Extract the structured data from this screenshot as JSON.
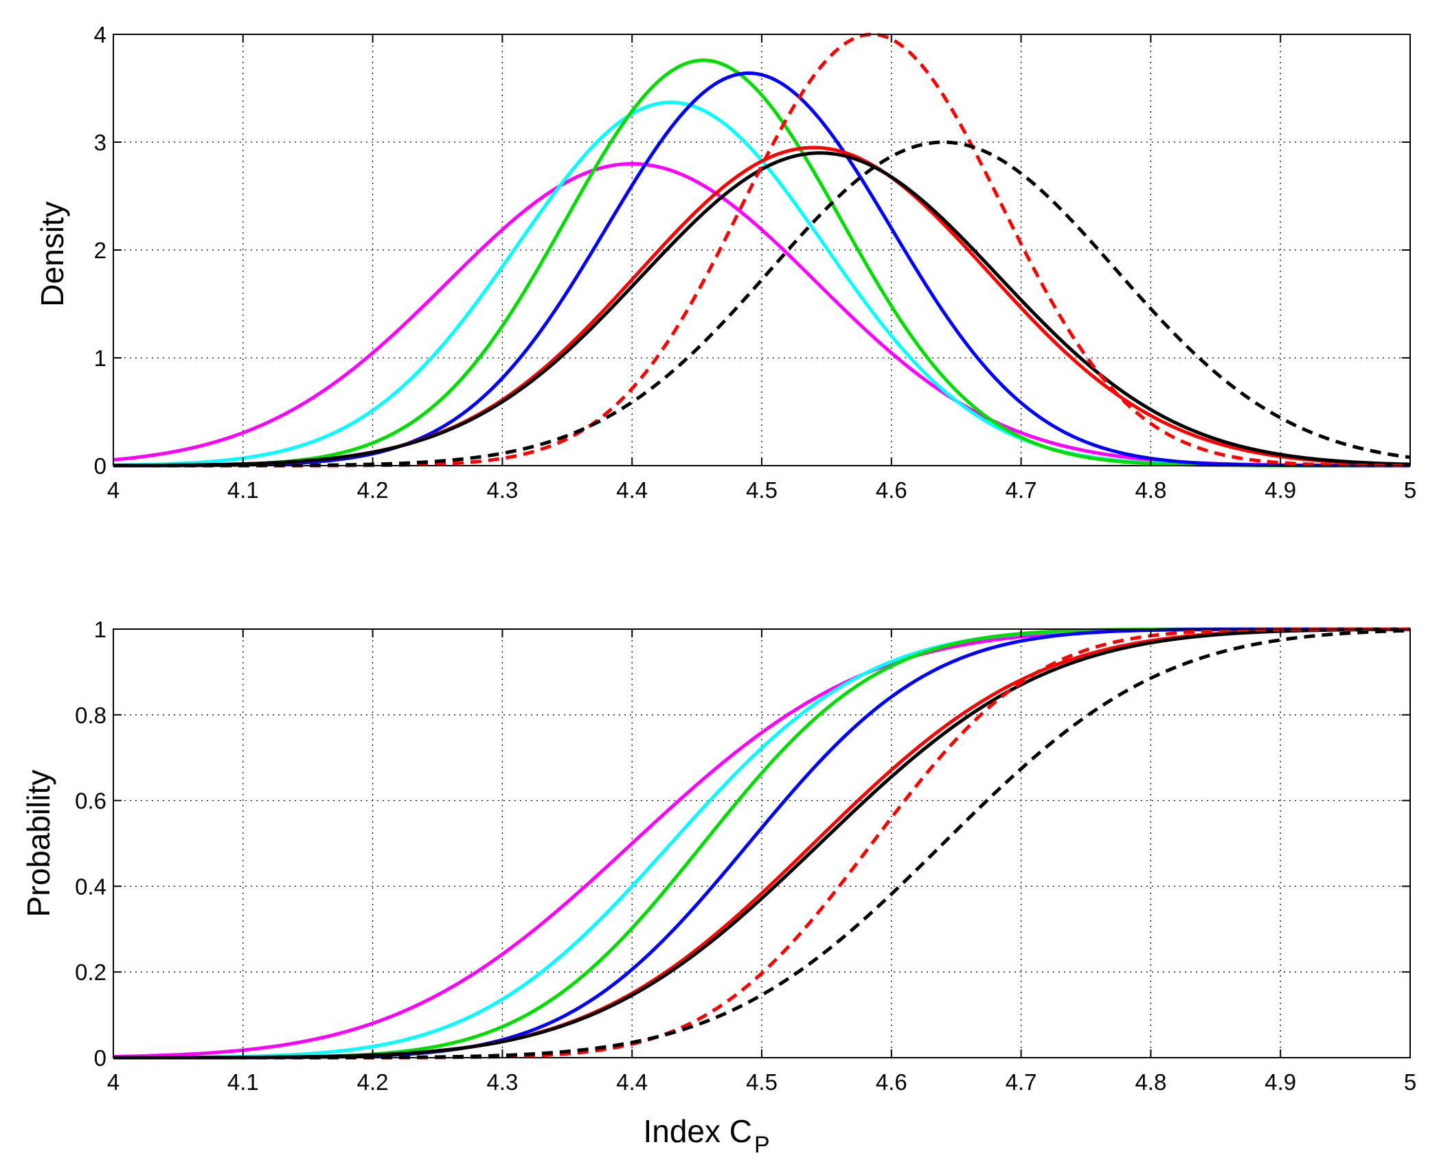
{
  "chart_data": [
    {
      "type": "line",
      "panel": "top",
      "title": "",
      "xlabel": "",
      "ylabel": "Density",
      "xlim": [
        4,
        5
      ],
      "ylim": [
        0,
        4
      ],
      "xticks": [
        "4",
        "4.1",
        "4.2",
        "4.3",
        "4.4",
        "4.5",
        "4.6",
        "4.7",
        "4.8",
        "4.9",
        "5"
      ],
      "yticks": [
        "0",
        "1",
        "2",
        "3",
        "4"
      ],
      "grid": true,
      "series": [
        {
          "name": "magenta",
          "color": "#ff00ff",
          "style": "solid",
          "kind": "normal",
          "mean": 4.4,
          "sd": 0.1425,
          "peak": 2.8
        },
        {
          "name": "cyan",
          "color": "#00ffff",
          "style": "solid",
          "kind": "normal",
          "mean": 4.43,
          "sd": 0.1185,
          "peak": 3.37
        },
        {
          "name": "green",
          "color": "#00dd00",
          "style": "solid",
          "kind": "normal",
          "mean": 4.455,
          "sd": 0.1062,
          "peak": 3.76
        },
        {
          "name": "blue",
          "color": "#0000ff",
          "style": "solid",
          "kind": "normal",
          "mean": 4.49,
          "sd": 0.1097,
          "peak": 3.64
        },
        {
          "name": "red solid",
          "color": "#ff0000",
          "style": "solid",
          "kind": "normal",
          "mean": 4.54,
          "sd": 0.1352,
          "peak": 2.95
        },
        {
          "name": "black solid",
          "color": "#000000",
          "style": "solid",
          "kind": "normal",
          "mean": 4.545,
          "sd": 0.1375,
          "peak": 2.9
        },
        {
          "name": "red dashed",
          "color": "#ff0000",
          "style": "dashed",
          "kind": "normal",
          "mean": 4.585,
          "sd": 0.0997,
          "peak": 4.0
        },
        {
          "name": "black dashed",
          "color": "#000000",
          "style": "dashed",
          "kind": "normal",
          "mean": 4.64,
          "sd": 0.133,
          "peak": 3.0
        }
      ]
    },
    {
      "type": "line",
      "panel": "bottom",
      "title": "",
      "xlabel": "Index C",
      "xlabel_sub": "P",
      "ylabel": "Probability",
      "xlim": [
        4,
        5
      ],
      "ylim": [
        0,
        1
      ],
      "xticks": [
        "4",
        "4.1",
        "4.2",
        "4.3",
        "4.4",
        "4.5",
        "4.6",
        "4.7",
        "4.8",
        "4.9",
        "5"
      ],
      "yticks": [
        "0",
        "0.2",
        "0.4",
        "0.6",
        "0.8",
        "1"
      ],
      "grid": true,
      "series": [
        {
          "name": "magenta",
          "color": "#ff00ff",
          "style": "solid",
          "kind": "cdf",
          "mean": 4.4,
          "sd": 0.1425
        },
        {
          "name": "cyan",
          "color": "#00ffff",
          "style": "solid",
          "kind": "cdf",
          "mean": 4.43,
          "sd": 0.1185
        },
        {
          "name": "green",
          "color": "#00dd00",
          "style": "solid",
          "kind": "cdf",
          "mean": 4.455,
          "sd": 0.1062
        },
        {
          "name": "blue",
          "color": "#0000ff",
          "style": "solid",
          "kind": "cdf",
          "mean": 4.49,
          "sd": 0.1097
        },
        {
          "name": "red solid",
          "color": "#ff0000",
          "style": "solid",
          "kind": "cdf",
          "mean": 4.54,
          "sd": 0.1352
        },
        {
          "name": "black solid",
          "color": "#000000",
          "style": "solid",
          "kind": "cdf",
          "mean": 4.545,
          "sd": 0.1375
        },
        {
          "name": "red dashed",
          "color": "#ff0000",
          "style": "dashed",
          "kind": "cdf",
          "mean": 4.585,
          "sd": 0.0997
        },
        {
          "name": "black dashed",
          "color": "#000000",
          "style": "dashed",
          "kind": "cdf",
          "mean": 4.64,
          "sd": 0.133
        }
      ]
    }
  ]
}
